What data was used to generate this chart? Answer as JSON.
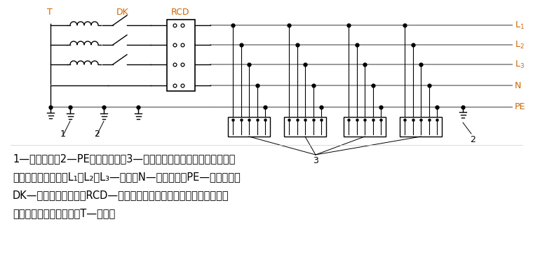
{
  "bg_color": "#ffffff",
  "line_color": "#999999",
  "dark_color": "#000000",
  "label_color": "#cc6600",
  "fig_width": 7.6,
  "fig_height": 3.97,
  "caption_lines": [
    "1—工作接地；2—PE线重复接地；3—电气设备金属外壳（正常不带电的",
    "外露可导电部分）；L₁、L₂、L₃—相线；N—工作零线；PE—保护零线；",
    "DK—总电源隔离开关；RCD—总漏电保护器（兼有短路、过载、漏电保",
    "护功能的漏电断路器）；T—变压器"
  ]
}
